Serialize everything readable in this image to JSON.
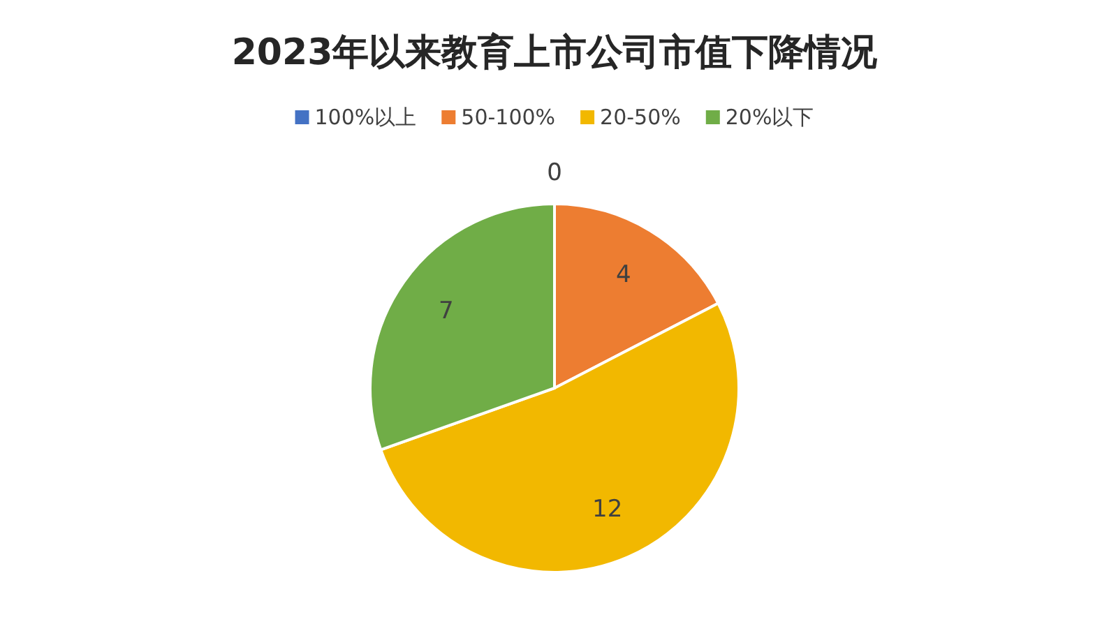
{
  "chart_data": {
    "type": "pie",
    "title": "2023年以来教育上市公司市值下降情况",
    "categories": [
      "100%以上",
      "50-100%",
      "20-50%",
      "20%以下"
    ],
    "values": [
      0,
      4,
      12,
      7
    ],
    "colors": [
      "#4472c4",
      "#ed7d31",
      "#f2b800",
      "#70ad47"
    ],
    "value_labels": [
      "0",
      "4",
      "12",
      "7"
    ],
    "legend": "top"
  }
}
